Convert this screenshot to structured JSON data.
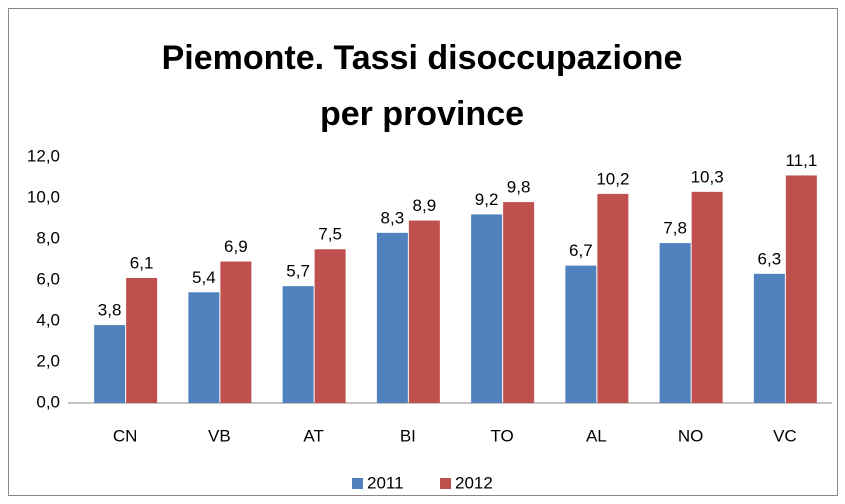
{
  "chart_data": {
    "type": "bar",
    "title": "Piemonte. Tassi disoccupazione per province",
    "categories": [
      "CN",
      "VB",
      "AT",
      "BI",
      "TO",
      "AL",
      "NO",
      "VC"
    ],
    "series": [
      {
        "name": "2011",
        "color": "#4f81bd",
        "values": [
          3.8,
          5.4,
          5.7,
          8.3,
          9.2,
          6.7,
          7.8,
          6.3
        ],
        "value_labels": [
          "3,8",
          "5,4",
          "5,7",
          "8,3",
          "9,2",
          "6,7",
          "7,8",
          "6,3"
        ]
      },
      {
        "name": "2012",
        "color": "#c0504d",
        "values": [
          6.1,
          6.9,
          7.5,
          8.9,
          9.8,
          10.2,
          10.3,
          11.1
        ],
        "value_labels": [
          "6,1",
          "6,9",
          "7,5",
          "8,9",
          "9,8",
          "10,2",
          "10,3",
          "11,1"
        ]
      }
    ],
    "ylim": [
      0,
      12
    ],
    "yticks": [
      {
        "value": 0,
        "label": "0,0"
      },
      {
        "value": 2,
        "label": "2,0"
      },
      {
        "value": 4,
        "label": "4,0"
      },
      {
        "value": 6,
        "label": "6,0"
      },
      {
        "value": 8,
        "label": "8,0"
      },
      {
        "value": 10,
        "label": "10,0"
      },
      {
        "value": 12,
        "label": "12,0"
      }
    ],
    "legend": "bottom"
  }
}
